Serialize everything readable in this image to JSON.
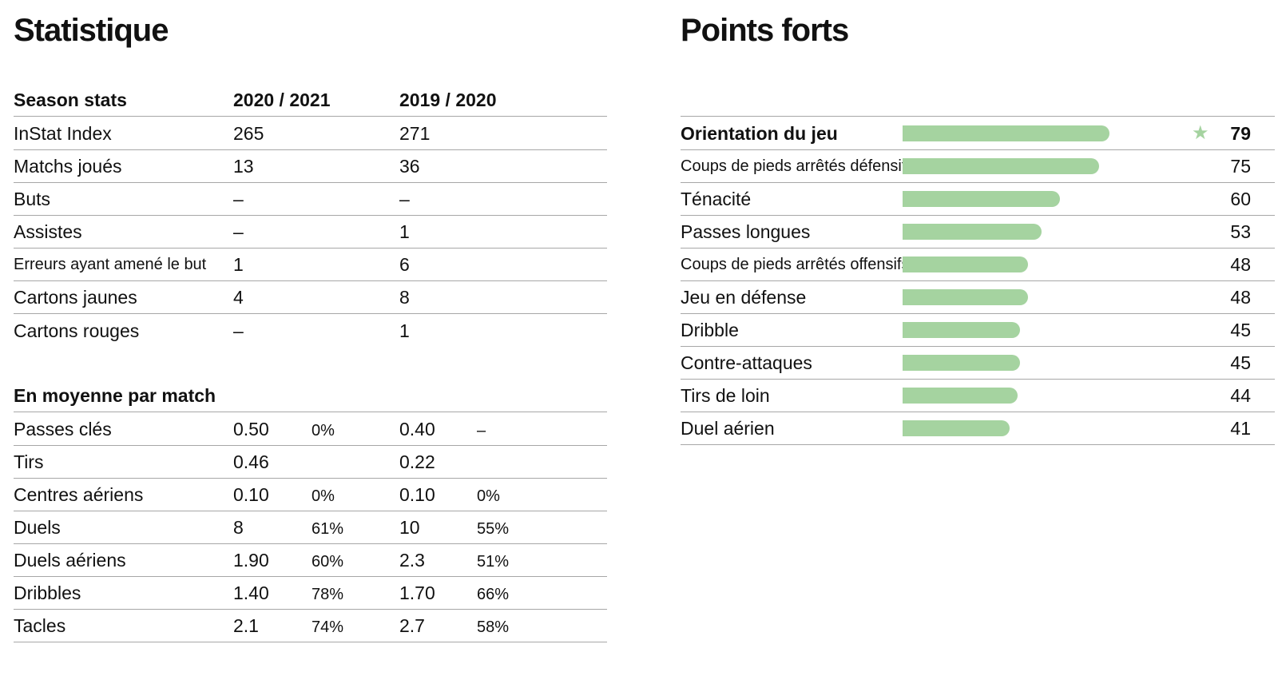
{
  "statistique": {
    "title": "Statistique",
    "season_header": {
      "label": "Season stats",
      "year1": "2020 / 2021",
      "year2": "2019 / 2020"
    },
    "season_rows": [
      {
        "label": "InStat Index",
        "y1": "265",
        "y2": "271"
      },
      {
        "label": "Matchs joués",
        "y1": "13",
        "y2": "36"
      },
      {
        "label": "Buts",
        "y1": "–",
        "y2": "–"
      },
      {
        "label": "Assistes",
        "y1": "–",
        "y2": "1"
      },
      {
        "label": "Erreurs ayant amené le but",
        "y1": "1",
        "y2": "6"
      },
      {
        "label": "Cartons jaunes",
        "y1": "4",
        "y2": "8"
      },
      {
        "label": "Cartons rouges",
        "y1": "–",
        "y2": "1"
      }
    ],
    "average_header": "En moyenne par match",
    "average_rows": [
      {
        "label": "Passes clés",
        "y1": "0.50",
        "p1": "0%",
        "y2": "0.40",
        "p2": "–"
      },
      {
        "label": "Tirs",
        "y1": "0.46",
        "p1": "",
        "y2": "0.22",
        "p2": ""
      },
      {
        "label": "Centres aériens",
        "y1": "0.10",
        "p1": "0%",
        "y2": "0.10",
        "p2": "0%"
      },
      {
        "label": "Duels",
        "y1": "8",
        "p1": "61%",
        "y2": "10",
        "p2": "55%"
      },
      {
        "label": "Duels aériens",
        "y1": "1.90",
        "p1": "60%",
        "y2": "2.3",
        "p2": "51%"
      },
      {
        "label": "Dribbles",
        "y1": "1.40",
        "p1": "78%",
        "y2": "1.70",
        "p2": "66%"
      },
      {
        "label": "Tacles",
        "y1": "2.1",
        "p1": "74%",
        "y2": "2.7",
        "p2": "58%"
      }
    ]
  },
  "points_forts": {
    "title": "Points forts",
    "bar_color": "#a5d3a0",
    "star_icon": "star-icon",
    "scale_max": 100
  },
  "chart_data": {
    "type": "bar",
    "title": "Points forts",
    "orientation": "horizontal",
    "categories": [
      "Orientation du jeu",
      "Coups de pieds arrêtés défensifs",
      "Ténacité",
      "Passes longues",
      "Coups de pieds arrêtés offensifs",
      "Jeu en défense",
      "Dribble",
      "Contre-attaques",
      "Tirs de loin",
      "Duel aérien"
    ],
    "values": [
      79,
      75,
      60,
      53,
      48,
      48,
      45,
      45,
      44,
      41
    ],
    "highlighted": [
      "Orientation du jeu"
    ],
    "xlim": [
      0,
      85
    ]
  }
}
